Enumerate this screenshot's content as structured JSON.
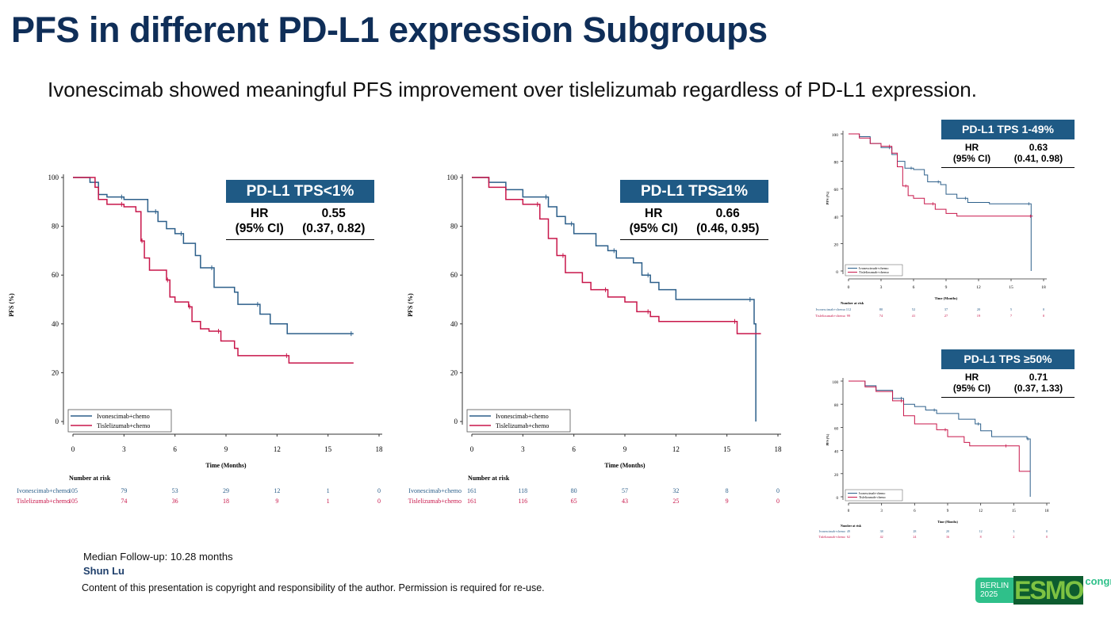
{
  "title": "PFS in different PD-L1 expression Subgroups",
  "subtitle": "Ivonescimab showed meaningful PFS improvement over tislelizumab regardless of PD-L1 expression.",
  "footer": {
    "followup": "Median Follow-up: 10.28 months",
    "author": "Shun Lu",
    "copyright": "Content of this presentation is copyright and responsibility of the author. Permission is required for re-use."
  },
  "logo": {
    "city": "BERLIN",
    "year": "2025",
    "brand": "ESMO",
    "suffix": "congress"
  },
  "colors": {
    "ivo": "#2c5f8a",
    "tisl": "#c8164a",
    "header": "#1f5a85"
  },
  "chart_data": [
    {
      "type": "line",
      "subtype": "kaplan-meier",
      "title": "PD-L1 TPS<1%",
      "hr_label": "HR",
      "ci_label": "(95% CI)",
      "hr": "0.55",
      "ci": "(0.37, 0.82)",
      "xlabel": "Time (Months)",
      "ylabel": "PFS (%)",
      "xlim": [
        0,
        18
      ],
      "ylim": [
        0,
        100
      ],
      "xticks": [
        "0",
        "3",
        "6",
        "9",
        "12",
        "15",
        "18"
      ],
      "yticks": [
        "0",
        "20",
        "40",
        "60",
        "80",
        "100"
      ],
      "legend_placement": "bottom-left",
      "risk_title": "Number at risk",
      "series": [
        {
          "name": "Ivonescimab+chemo",
          "color_key": "ivo",
          "risk": [
            "105",
            "79",
            "53",
            "29",
            "12",
            "1",
            "0"
          ],
          "points": [
            [
              0,
              100
            ],
            [
              1,
              98
            ],
            [
              1.5,
              93
            ],
            [
              2,
              92
            ],
            [
              3,
              91
            ],
            [
              4.2,
              91
            ],
            [
              4.4,
              86
            ],
            [
              5,
              82
            ],
            [
              5.5,
              79
            ],
            [
              6,
              77
            ],
            [
              6.5,
              73
            ],
            [
              7.2,
              68
            ],
            [
              7.5,
              63
            ],
            [
              8.3,
              55
            ],
            [
              9.5,
              53
            ],
            [
              9.7,
              48
            ],
            [
              11,
              44
            ],
            [
              11.6,
              40
            ],
            [
              12.6,
              36
            ],
            [
              16.5,
              36
            ]
          ]
        },
        {
          "name": "Tislelizumab+chemo",
          "color_key": "tisl",
          "risk": [
            "105",
            "74",
            "36",
            "18",
            "9",
            "1",
            "0"
          ],
          "points": [
            [
              0,
              100
            ],
            [
              1.3,
              96
            ],
            [
              1.5,
              91
            ],
            [
              2,
              89
            ],
            [
              3,
              88
            ],
            [
              3.7,
              86
            ],
            [
              4,
              74
            ],
            [
              4.2,
              67
            ],
            [
              4.5,
              62
            ],
            [
              5.5,
              58
            ],
            [
              5.7,
              51
            ],
            [
              6,
              49
            ],
            [
              6.8,
              47
            ],
            [
              7,
              41
            ],
            [
              7.5,
              38
            ],
            [
              8,
              37
            ],
            [
              8.7,
              33
            ],
            [
              9.5,
              30
            ],
            [
              9.7,
              27
            ],
            [
              12.7,
              24
            ],
            [
              16.5,
              24
            ]
          ]
        }
      ]
    },
    {
      "type": "line",
      "subtype": "kaplan-meier",
      "title": "PD-L1 TPS≥1%",
      "hr_label": "HR",
      "ci_label": "(95% CI)",
      "hr": "0.66",
      "ci": "(0.46, 0.95)",
      "xlabel": "Time (Months)",
      "ylabel": "PFS (%)",
      "xlim": [
        0,
        18
      ],
      "ylim": [
        0,
        100
      ],
      "xticks": [
        "0",
        "3",
        "6",
        "9",
        "12",
        "15",
        "18"
      ],
      "yticks": [
        "0",
        "20",
        "40",
        "60",
        "80",
        "100"
      ],
      "legend_placement": "bottom-left",
      "risk_title": "Number at risk",
      "series": [
        {
          "name": "Ivonescimab+chemo",
          "color_key": "ivo",
          "risk": [
            "161",
            "118",
            "80",
            "57",
            "32",
            "8",
            "0"
          ],
          "points": [
            [
              0,
              100
            ],
            [
              1,
              98
            ],
            [
              2,
              95
            ],
            [
              3,
              92
            ],
            [
              4.5,
              88
            ],
            [
              5,
              84
            ],
            [
              5.5,
              81
            ],
            [
              6,
              77
            ],
            [
              7.3,
              72
            ],
            [
              8,
              70
            ],
            [
              8.5,
              67
            ],
            [
              9.5,
              65
            ],
            [
              10,
              60
            ],
            [
              10.5,
              57
            ],
            [
              11,
              54
            ],
            [
              12,
              50
            ],
            [
              16.5,
              50
            ],
            [
              16.6,
              40
            ],
            [
              16.7,
              0
            ]
          ]
        },
        {
          "name": "Tislelizumab+chemo",
          "color_key": "tisl",
          "risk": [
            "161",
            "116",
            "65",
            "43",
            "25",
            "9",
            "0"
          ],
          "points": [
            [
              0,
              100
            ],
            [
              1,
              96
            ],
            [
              2,
              91
            ],
            [
              3,
              89
            ],
            [
              4,
              83
            ],
            [
              4.5,
              75
            ],
            [
              5,
              68
            ],
            [
              5.5,
              61
            ],
            [
              6.5,
              57
            ],
            [
              7,
              54
            ],
            [
              8,
              51
            ],
            [
              9,
              49
            ],
            [
              9.7,
              45
            ],
            [
              10.5,
              43
            ],
            [
              11,
              41
            ],
            [
              15.5,
              41
            ],
            [
              15.6,
              36
            ],
            [
              17,
              36
            ]
          ]
        }
      ]
    },
    {
      "type": "line",
      "subtype": "kaplan-meier",
      "title": "PD-L1 TPS 1-49%",
      "hr_label": "HR",
      "ci_label": "(95% CI)",
      "hr": "0.63",
      "ci": "(0.41, 0.98)",
      "xlabel": "Time (Months)",
      "ylabel": "PFS (%)",
      "xlim": [
        0,
        18
      ],
      "ylim": [
        0,
        100
      ],
      "xticks": [
        "0",
        "3",
        "6",
        "9",
        "12",
        "15",
        "18"
      ],
      "yticks": [
        "0",
        "20",
        "40",
        "60",
        "80",
        "100"
      ],
      "legend_placement": "bottom-left",
      "risk_title": "Number at risk",
      "series": [
        {
          "name": "Ivonescimab+chemo",
          "color_key": "ivo",
          "risk": [
            "112",
            "80",
            "52",
            "37",
            "20",
            "5",
            "0"
          ],
          "points": [
            [
              0,
              100
            ],
            [
              1,
              98
            ],
            [
              2,
              93
            ],
            [
              3,
              90
            ],
            [
              4,
              85
            ],
            [
              4.5,
              80
            ],
            [
              5.2,
              75
            ],
            [
              6,
              74
            ],
            [
              7,
              70
            ],
            [
              7.3,
              65
            ],
            [
              8.5,
              63
            ],
            [
              9,
              56
            ],
            [
              10,
              53
            ],
            [
              11,
              50
            ],
            [
              13,
              49
            ],
            [
              16.8,
              49
            ],
            [
              16.85,
              0
            ]
          ]
        },
        {
          "name": "Tislelizumab+chemo",
          "color_key": "tisl",
          "risk": [
            "99",
            "74",
            "41",
            "27",
            "19",
            "7",
            "0"
          ],
          "points": [
            [
              0,
              100
            ],
            [
              1,
              97
            ],
            [
              2,
              93
            ],
            [
              3,
              91
            ],
            [
              4,
              86
            ],
            [
              4.5,
              76
            ],
            [
              5,
              62
            ],
            [
              5.5,
              55
            ],
            [
              6,
              53
            ],
            [
              7,
              49
            ],
            [
              8,
              45
            ],
            [
              9,
              42
            ],
            [
              10,
              40
            ],
            [
              17,
              40
            ]
          ]
        }
      ]
    },
    {
      "type": "line",
      "subtype": "kaplan-meier",
      "title": "PD-L1 TPS ≥50%",
      "hr_label": "HR",
      "ci_label": "(95% CI)",
      "hr": "0.71",
      "ci": "(0.37, 1.33)",
      "xlabel": "Time (Months)",
      "ylabel": "PFS (%)",
      "xlim": [
        0,
        18
      ],
      "ylim": [
        0,
        100
      ],
      "xticks": [
        "0",
        "3",
        "6",
        "9",
        "12",
        "15",
        "18"
      ],
      "yticks": [
        "0",
        "20",
        "40",
        "60",
        "80",
        "100"
      ],
      "legend_placement": "bottom-left",
      "risk_title": "Number at risk",
      "series": [
        {
          "name": "Ivonescimab+chemo",
          "color_key": "ivo",
          "risk": [
            "49",
            "38",
            "28",
            "20",
            "12",
            "3",
            "0"
          ],
          "points": [
            [
              0,
              100
            ],
            [
              1.5,
              96
            ],
            [
              2.5,
              92
            ],
            [
              4,
              85
            ],
            [
              5,
              80
            ],
            [
              6,
              78
            ],
            [
              7,
              75
            ],
            [
              8,
              72
            ],
            [
              10,
              67
            ],
            [
              11.5,
              63
            ],
            [
              12,
              57
            ],
            [
              13,
              52
            ],
            [
              16.2,
              50
            ],
            [
              16.5,
              0
            ]
          ]
        },
        {
          "name": "Tislelizumab+chemo",
          "color_key": "tisl",
          "risk": [
            "62",
            "42",
            "24",
            "16",
            "8",
            "2",
            "0"
          ],
          "points": [
            [
              0,
              100
            ],
            [
              1.5,
              95
            ],
            [
              2.5,
              91
            ],
            [
              4,
              83
            ],
            [
              5,
              70
            ],
            [
              6,
              63
            ],
            [
              8,
              58
            ],
            [
              9,
              52
            ],
            [
              10.5,
              47
            ],
            [
              11,
              44
            ],
            [
              14.5,
              44
            ],
            [
              15.5,
              22
            ],
            [
              16.5,
              22
            ]
          ]
        }
      ]
    }
  ]
}
